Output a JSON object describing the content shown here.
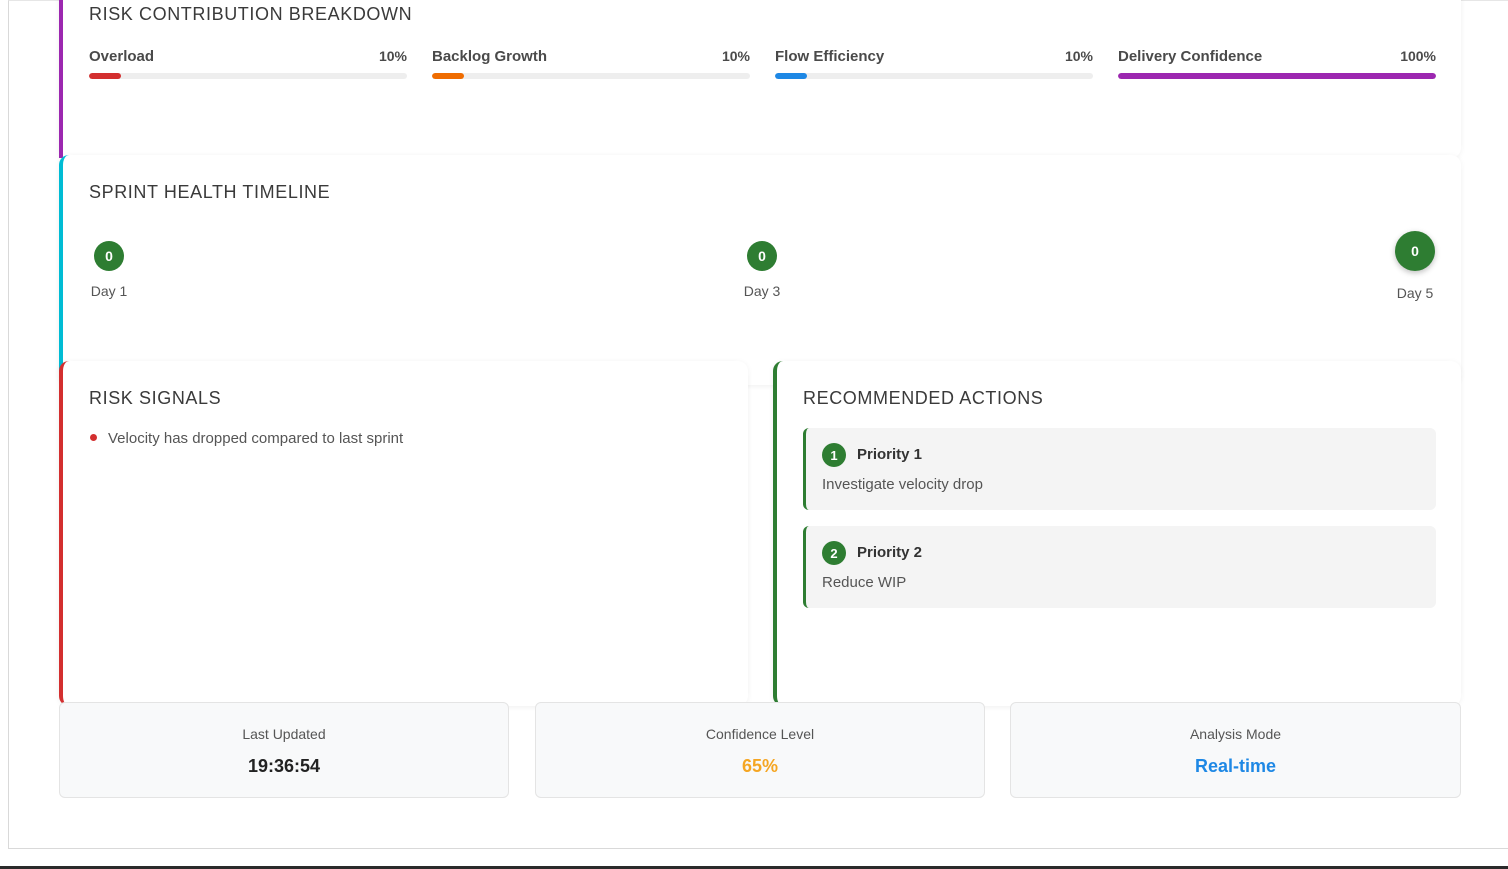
{
  "risk_breakdown": {
    "title": "RISK CONTRIBUTION BREAKDOWN",
    "metrics": [
      {
        "label": "Overload",
        "percent": "10%",
        "fill_fraction": 0.1,
        "color": "#d32f2f"
      },
      {
        "label": "Backlog Growth",
        "percent": "10%",
        "fill_fraction": 0.1,
        "color": "#ef6c00"
      },
      {
        "label": "Flow Efficiency",
        "percent": "10%",
        "fill_fraction": 0.1,
        "color": "#1e88e5"
      },
      {
        "label": "Delivery Confidence",
        "percent": "100%",
        "fill_fraction": 1.0,
        "color": "#9c27b0"
      }
    ],
    "accent_color": "#9c27b0"
  },
  "timeline": {
    "title": "SPRINT HEALTH TIMELINE",
    "accent_color": "#00bcd4",
    "points": [
      {
        "value": "0",
        "label": "Day 1"
      },
      {
        "value": "0",
        "label": "Day 3"
      },
      {
        "value": "0",
        "label": "Day 5"
      }
    ]
  },
  "risk_signals": {
    "title": "RISK SIGNALS",
    "accent_color": "#d32f2f",
    "items": [
      "Velocity has dropped compared to last sprint"
    ]
  },
  "recommended_actions": {
    "title": "RECOMMENDED ACTIONS",
    "accent_color": "#2e7d32",
    "items": [
      {
        "number": "1",
        "title": "Priority 1",
        "description": "Investigate velocity drop"
      },
      {
        "number": "2",
        "title": "Priority 2",
        "description": "Reduce WIP"
      }
    ]
  },
  "stats": [
    {
      "label": "Last Updated",
      "value": "19:36:54",
      "color": "#222222"
    },
    {
      "label": "Confidence Level",
      "value": "65%",
      "color": "#f5a623"
    },
    {
      "label": "Analysis Mode",
      "value": "Real-time",
      "color": "#1e88e5"
    }
  ]
}
